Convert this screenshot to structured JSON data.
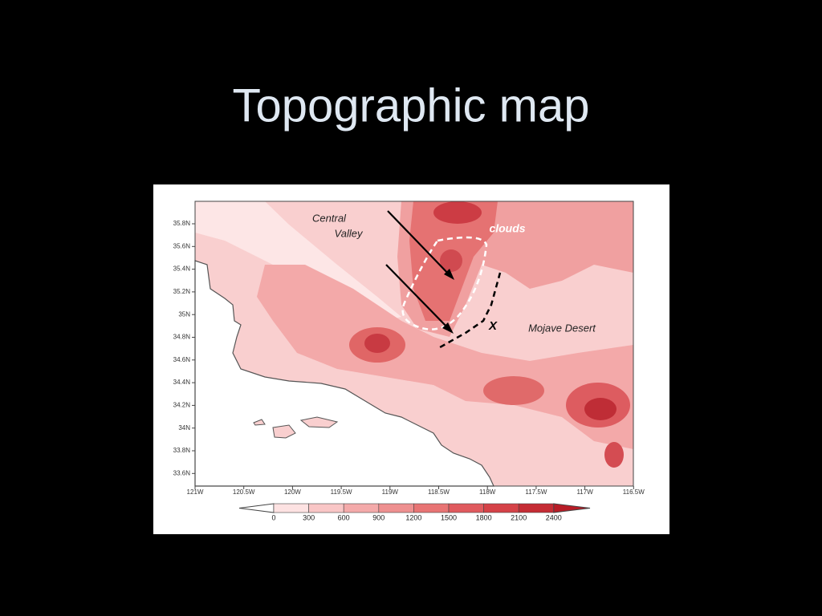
{
  "title": "Topographic map",
  "map": {
    "labels": {
      "central_valley": [
        "Central",
        "Valley"
      ],
      "clouds": "clouds",
      "mojave": "Mojave Desert",
      "x": "X"
    },
    "lat_ticks": [
      "35.8N",
      "35.6N",
      "35.4N",
      "35.2N",
      "35N",
      "34.8N",
      "34.6N",
      "34.4N",
      "34.2N",
      "34N",
      "33.8N",
      "33.6N"
    ],
    "lon_ticks": [
      "121W",
      "120.5W",
      "120W",
      "119.5W",
      "119W",
      "118.5W",
      "118W",
      "117.5W",
      "117W",
      "116.5W"
    ],
    "colorbar": {
      "ticks": [
        0,
        300,
        600,
        900,
        1200,
        1500,
        1800,
        2100,
        2400
      ]
    }
  }
}
